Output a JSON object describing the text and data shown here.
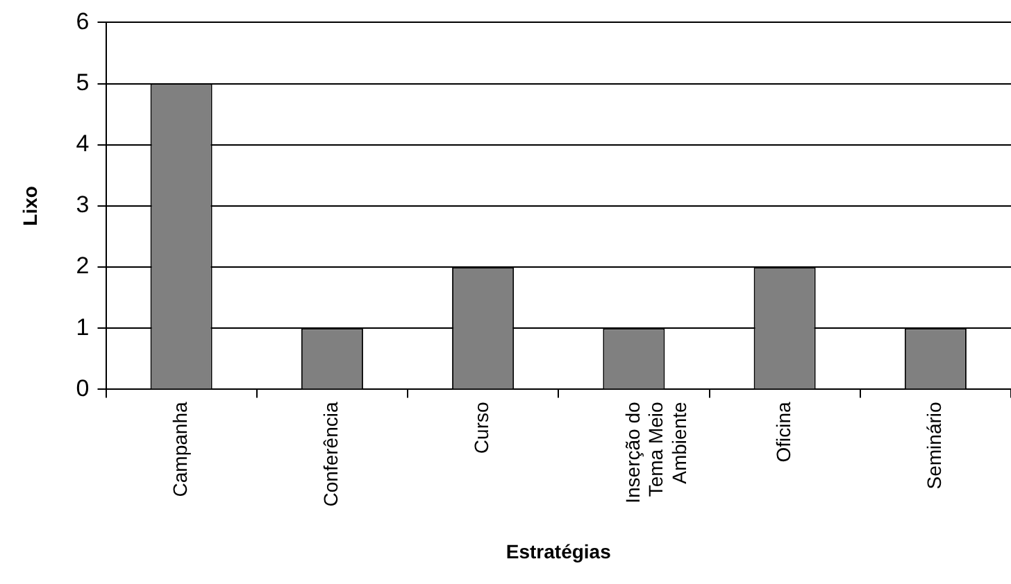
{
  "chart_data": {
    "type": "bar",
    "xlabel": "Estratégias",
    "ylabel": "Lixo",
    "categories": [
      "Campanha",
      "Conferência",
      "Curso",
      "Inserção do Tema Meio Ambiente",
      "Oficina",
      "Seminário"
    ],
    "values": [
      5,
      1,
      2,
      1,
      2,
      1
    ],
    "color": "#808080",
    "ylim": [
      0,
      6
    ],
    "yticks": [
      0,
      1,
      2,
      3,
      4,
      5,
      6
    ],
    "grid": "y",
    "legend": false
  }
}
